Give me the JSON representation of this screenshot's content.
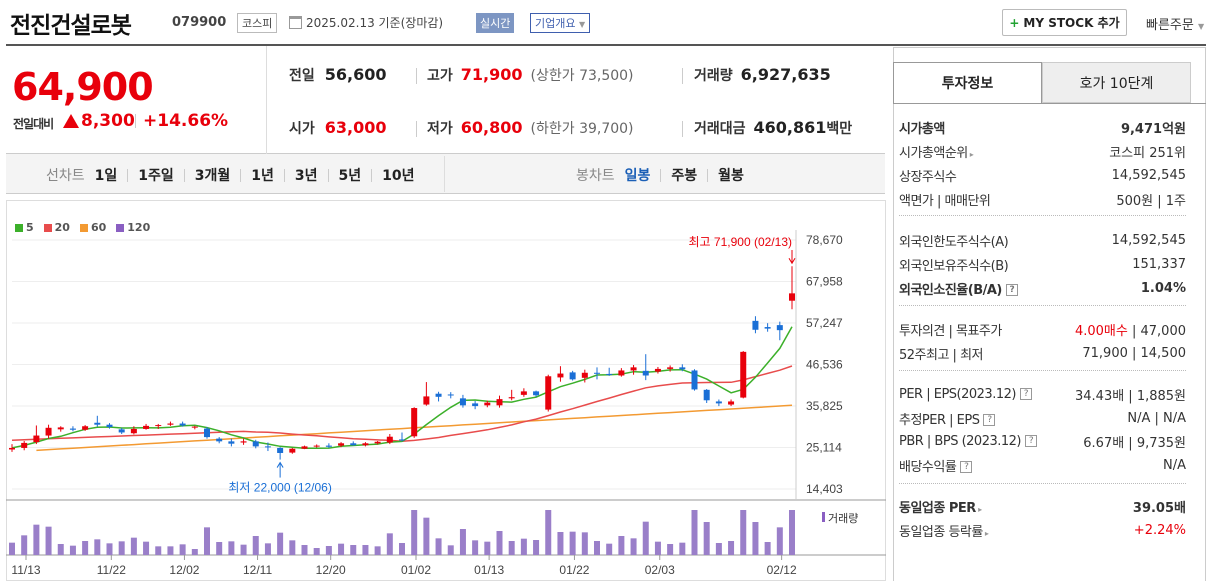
{
  "header": {
    "company_name": "전진건설로봇",
    "stock_code": "079900",
    "market_badge": "코스피",
    "date_text": "2025.02.13 기준(장마감)",
    "live_badge": "실시간",
    "corp_overview_label": "기업개요",
    "mystock_label": "MY STOCK 추가",
    "quick_order_label": "빠른주문"
  },
  "price": {
    "current": "64,900",
    "change_label": "전일대비",
    "change_value": "8,300",
    "change_pct": "+14.66%"
  },
  "quote": {
    "prev_close_label": "전일",
    "prev_close": "56,600",
    "high_label": "고가",
    "high": "71,900",
    "upper_limit": "(상한가 73,500)",
    "volume_label": "거래량",
    "volume": "6,927,635",
    "open_label": "시가",
    "open": "63,000",
    "low_label": "저가",
    "low": "60,800",
    "lower_limit": "(하한가 39,700)",
    "amount_label": "거래대금",
    "amount": "460,861",
    "amount_unit": "백만"
  },
  "chart_tabs": {
    "line_label": "선차트",
    "periods": [
      "1일",
      "1주일",
      "3개월",
      "1년",
      "3년",
      "5년",
      "10년"
    ],
    "candle_label": "봉차트",
    "candles": [
      "일봉",
      "주봉",
      "월봉"
    ],
    "candle_selected": "일봉"
  },
  "chart_data": {
    "type": "candlestick",
    "legend": [
      {
        "name": "5",
        "color": "#3cb02a"
      },
      {
        "name": "20",
        "color": "#e84c4c"
      },
      {
        "name": "60",
        "color": "#f39a32"
      },
      {
        "name": "120",
        "color": "#8a5fc2"
      }
    ],
    "y_ticks": [
      "78,670",
      "67,958",
      "57,247",
      "46,536",
      "35,825",
      "25,114",
      "14,403"
    ],
    "ylim": [
      14403,
      78670
    ],
    "x_ticks": [
      "11/13",
      "11/22",
      "12/02",
      "12/11",
      "12/20",
      "01/02",
      "01/13",
      "01/22",
      "02/03",
      "02/12"
    ],
    "annotation_high": "최고 71,900 (02/13)",
    "annotation_low": "최저 22,000 (12/06)",
    "volume_label": "거래량",
    "candles_ohlc": [
      [
        24600,
        26000,
        24000,
        25000
      ],
      [
        25000,
        26800,
        24400,
        26300
      ],
      [
        26500,
        30800,
        26000,
        28200
      ],
      [
        28200,
        31000,
        27400,
        30200
      ],
      [
        29800,
        30600,
        29200,
        30300
      ],
      [
        30000,
        30600,
        29300,
        29700
      ],
      [
        29700,
        30900,
        29400,
        30600
      ],
      [
        31500,
        33300,
        30500,
        31000
      ],
      [
        31000,
        31400,
        30000,
        30400
      ],
      [
        29800,
        30200,
        28600,
        29000
      ],
      [
        28800,
        30600,
        28500,
        29900
      ],
      [
        29900,
        31200,
        29700,
        30700
      ],
      [
        30700,
        31200,
        29900,
        30900
      ],
      [
        31000,
        31800,
        30700,
        31300
      ],
      [
        31300,
        31800,
        30500,
        30800
      ],
      [
        30500,
        30700,
        29800,
        30500
      ],
      [
        30000,
        30400,
        27400,
        27800
      ],
      [
        27400,
        27800,
        26200,
        26700
      ],
      [
        26700,
        27400,
        25400,
        26100
      ],
      [
        26400,
        27400,
        25800,
        26700
      ],
      [
        26700,
        27100,
        24900,
        25400
      ],
      [
        25400,
        26400,
        24200,
        25200
      ],
      [
        25000,
        25200,
        22000,
        23700
      ],
      [
        23800,
        25000,
        23500,
        24800
      ],
      [
        24800,
        25600,
        24700,
        25400
      ],
      [
        25400,
        25900,
        25100,
        25600
      ],
      [
        25600,
        26200,
        25000,
        25300
      ],
      [
        25600,
        26500,
        25200,
        26200
      ],
      [
        26200,
        26700,
        25600,
        25700
      ],
      [
        25700,
        26500,
        25400,
        26200
      ],
      [
        26200,
        26800,
        25900,
        26600
      ],
      [
        26400,
        28600,
        26000,
        27900
      ],
      [
        27200,
        29000,
        26700,
        27000
      ],
      [
        28000,
        35500,
        27600,
        35300
      ],
      [
        36200,
        42000,
        35900,
        38300
      ],
      [
        39000,
        39500,
        37000,
        38200
      ],
      [
        38800,
        39400,
        37800,
        38600
      ],
      [
        37800,
        38700,
        35400,
        36000
      ],
      [
        36500,
        37100,
        35000,
        35800
      ],
      [
        36000,
        37200,
        35500,
        36700
      ],
      [
        36000,
        38500,
        35400,
        37600
      ],
      [
        37800,
        40000,
        37300,
        38100
      ],
      [
        38700,
        40400,
        38200,
        39600
      ],
      [
        39600,
        39800,
        38200,
        38600
      ],
      [
        34900,
        43900,
        34400,
        43500
      ],
      [
        43200,
        46100,
        42100,
        44200
      ],
      [
        44500,
        44900,
        42400,
        42700
      ],
      [
        43100,
        45200,
        41900,
        44400
      ],
      [
        44400,
        45800,
        42700,
        44300
      ],
      [
        44100,
        45700,
        43600,
        43900
      ],
      [
        43700,
        45600,
        43400,
        45000
      ],
      [
        45000,
        46400,
        43900,
        45800
      ],
      [
        44900,
        49200,
        42500,
        43700
      ],
      [
        44700,
        45900,
        44200,
        45400
      ],
      [
        45400,
        46300,
        44700,
        45800
      ],
      [
        45800,
        46600,
        44800,
        45300
      ],
      [
        45000,
        45300,
        39800,
        40100
      ],
      [
        40000,
        40200,
        36600,
        37300
      ],
      [
        37000,
        37500,
        35800,
        36500
      ],
      [
        36200,
        37500,
        35800,
        37000
      ],
      [
        38000,
        50000,
        37800,
        49800
      ],
      [
        57800,
        59000,
        54600,
        55500
      ],
      [
        56200,
        57200,
        55000,
        55800
      ],
      [
        56700,
        57600,
        52800,
        55400
      ],
      [
        63000,
        71900,
        60800,
        64900
      ]
    ]
  },
  "invest_panel": {
    "tab_active": "투자정보",
    "tab_other": "호가 10단계",
    "rows": [
      {
        "k": "시가총액",
        "v": "9,471억원",
        "bold": true
      },
      {
        "k": "시가총액순위",
        "v": "코스피 251위",
        "caret": true
      },
      {
        "k": "상장주식수",
        "v": "14,592,545"
      },
      {
        "k": "액면가 | 매매단위",
        "v": "500원 | 1주"
      },
      {
        "k": "외국인한도주식수(A)",
        "v": "14,592,545"
      },
      {
        "k": "외국인보유주식수(B)",
        "v": "151,337"
      },
      {
        "k": "외국인소진율(B/A)",
        "v": "1.04%",
        "bold": true,
        "qm": true
      },
      {
        "k": "투자의견 | 목표주가",
        "v_red": "4.00매수",
        "v": " | 47,000"
      },
      {
        "k": "52주최고 | 최저",
        "v": "71,900 | 14,500"
      },
      {
        "k": "PER | EPS(2023.12)",
        "v": "34.43배 | 1,885원",
        "qm": true
      },
      {
        "k": "추정PER | EPS",
        "v": "N/A | N/A",
        "qm": true
      },
      {
        "k": "PBR | BPS (2023.12)",
        "v": "6.67배 | 9,735원",
        "qm": true
      },
      {
        "k": "배당수익률",
        "v": "N/A",
        "qm": true
      },
      {
        "k": "동일업종 PER",
        "v": "39.05배",
        "bold": true,
        "caret": true
      },
      {
        "k": "동일업종 등락률",
        "v": "+2.24%",
        "red": true,
        "caret": true
      }
    ]
  }
}
